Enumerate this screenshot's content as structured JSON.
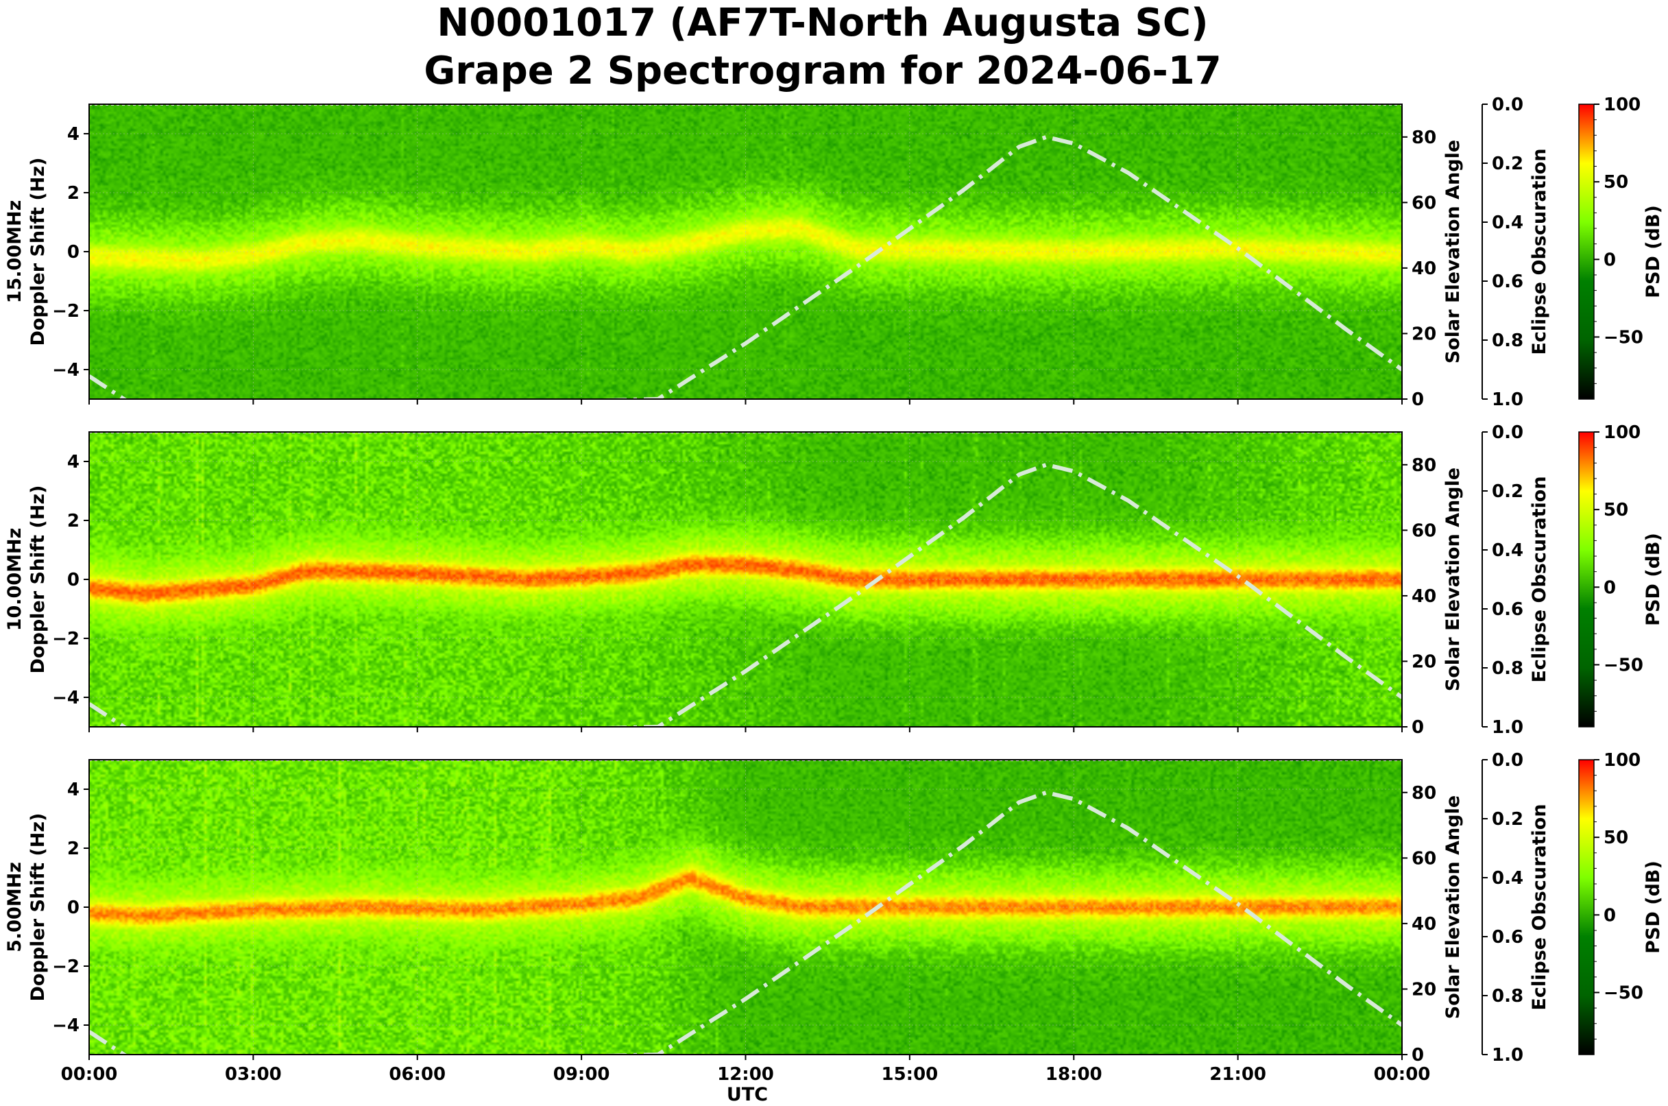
{
  "chart_data": {
    "type": "heatmap",
    "title": "N0001017 (AF7T-North Augusta SC)",
    "subtitle": "Grape 2 Spectrogram for 2024-06-17",
    "xlabel": "UTC",
    "x_ticks": [
      "00:00",
      "03:00",
      "06:00",
      "09:00",
      "12:00",
      "15:00",
      "18:00",
      "21:00",
      "00:00"
    ],
    "x_range_hours": [
      0,
      24
    ],
    "grid": true,
    "colorbar": {
      "label": "PSD (dB)",
      "range": [
        -90,
        100
      ],
      "ticks": [
        "100",
        "50",
        "0",
        "−50"
      ],
      "tick_values": [
        100,
        50,
        0,
        -50
      ],
      "colors": [
        "#000000",
        "#006400",
        "#008000",
        "#7fff00",
        "#ffff00",
        "#ff0000"
      ]
    },
    "solar_axis": {
      "label": "Solar Elevation Angle",
      "ylim": [
        0,
        90
      ],
      "ticks": [
        "0",
        "20",
        "40",
        "60",
        "80"
      ],
      "tick_values": [
        0,
        20,
        40,
        60,
        80
      ]
    },
    "eclipse_axis": {
      "label": "Eclipse Obscuration",
      "ylim": [
        1.0,
        0.0
      ],
      "ticks": [
        "0.0",
        "0.2",
        "0.4",
        "0.6",
        "0.8",
        "1.0"
      ],
      "tick_values": [
        0,
        0.2,
        0.4,
        0.6,
        0.8,
        1.0
      ]
    },
    "doppler_axis": {
      "ylim": [
        -5,
        5
      ],
      "ticks": [
        "4",
        "2",
        "0",
        "−2",
        "−4"
      ],
      "tick_values": [
        4,
        2,
        0,
        -2,
        -4
      ]
    },
    "solar_elevation": {
      "hours": [
        0.0,
        1.0,
        10.4,
        12.0,
        14.0,
        16.0,
        17.0,
        17.5,
        18.0,
        19.0,
        21.0,
        23.0,
        24.0
      ],
      "degrees": [
        7,
        -4,
        0,
        17,
        40,
        64,
        77,
        80,
        78,
        69,
        46,
        21,
        9
      ],
      "style": "dash-dot",
      "color": "#d9ead9"
    },
    "panels": [
      {
        "ylabel": "15.00MHz\nDoppler Shift (Hz)",
        "trace_hz": [
          [
            0,
            -0.2
          ],
          [
            2,
            -0.3
          ],
          [
            3,
            -0.1
          ],
          [
            4,
            0.3
          ],
          [
            5,
            0.4
          ],
          [
            6,
            0.2
          ],
          [
            7,
            0.1
          ],
          [
            8,
            0
          ],
          [
            9,
            0.2
          ],
          [
            10,
            0
          ],
          [
            11,
            0.3
          ],
          [
            12,
            0.7
          ],
          [
            13,
            0.8
          ],
          [
            14,
            0.1
          ],
          [
            18,
            0
          ],
          [
            21,
            0.1
          ],
          [
            24,
            -0.1
          ]
        ],
        "trace_peak_db": 60,
        "noise_db": [
          [
            0,
            -10
          ],
          [
            7,
            -8
          ],
          [
            9,
            -12
          ],
          [
            12,
            -5
          ],
          [
            14,
            -15
          ],
          [
            24,
            -15
          ]
        ]
      },
      {
        "ylabel": "10.00MHz\nDoppler Shift (Hz)",
        "trace_hz": [
          [
            0,
            -0.3
          ],
          [
            1,
            -0.5
          ],
          [
            3,
            -0.2
          ],
          [
            4,
            0.3
          ],
          [
            6,
            0.2
          ],
          [
            8,
            0
          ],
          [
            9,
            0.1
          ],
          [
            10,
            0.2
          ],
          [
            11,
            0.5
          ],
          [
            12,
            0.5
          ],
          [
            13,
            0.3
          ],
          [
            14,
            0
          ],
          [
            24,
            0
          ]
        ],
        "trace_peak_db": 85,
        "noise_db": [
          [
            0,
            15
          ],
          [
            7,
            15
          ],
          [
            10,
            12
          ],
          [
            12,
            5
          ],
          [
            14,
            -5
          ],
          [
            19,
            -5
          ],
          [
            21,
            5
          ],
          [
            24,
            15
          ]
        ]
      },
      {
        "ylabel": "5.00MHz\nDoppler Shift (Hz)",
        "trace_hz": [
          [
            0,
            -0.2
          ],
          [
            1,
            -0.3
          ],
          [
            3,
            -0.1
          ],
          [
            5,
            0
          ],
          [
            7,
            -0.1
          ],
          [
            9,
            0.1
          ],
          [
            10,
            0.3
          ],
          [
            11,
            1.0
          ],
          [
            12,
            0.3
          ],
          [
            13,
            0
          ],
          [
            24,
            0
          ]
        ],
        "trace_peak_db": 80,
        "noise_db": [
          [
            0,
            18
          ],
          [
            8,
            18
          ],
          [
            10.5,
            12
          ],
          [
            12,
            -5
          ],
          [
            24,
            -20
          ]
        ]
      }
    ]
  }
}
